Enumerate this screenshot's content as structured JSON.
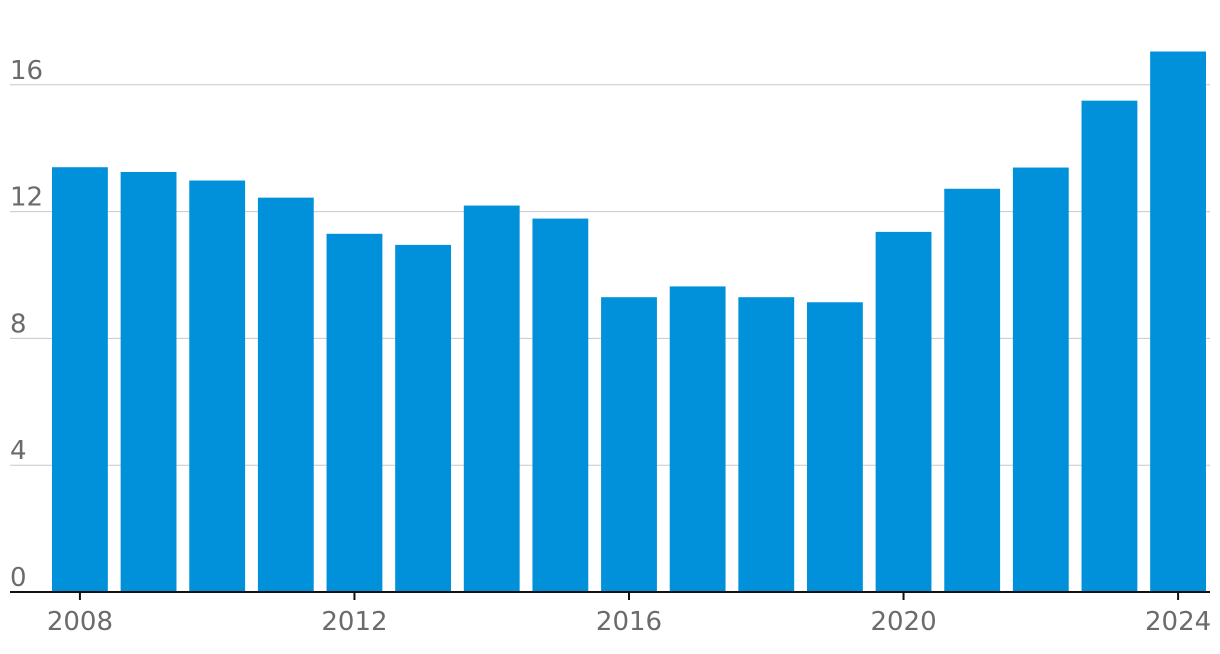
{
  "chart_data": {
    "type": "bar",
    "title": "",
    "xlabel": "",
    "ylabel": "",
    "categories": [
      "2008",
      "2009",
      "2010",
      "2011",
      "2012",
      "2013",
      "2014",
      "2015",
      "2016",
      "2017",
      "2018",
      "2019",
      "2020",
      "2021",
      "2022",
      "2023",
      "2024"
    ],
    "values": [
      13.4,
      13.25,
      12.98,
      12.44,
      11.3,
      10.95,
      12.19,
      11.78,
      9.3,
      9.64,
      9.3,
      9.14,
      11.36,
      12.72,
      13.39,
      15.5,
      17.05
    ],
    "x_tick_labels": [
      "2008",
      "2012",
      "2016",
      "2020",
      "2024"
    ],
    "y_ticks": [
      0,
      4,
      8,
      12,
      16
    ],
    "y_tick_labels": [
      "0",
      "4",
      "8",
      "12",
      "16"
    ],
    "ylim": [
      0,
      17.5
    ],
    "grid": true,
    "legend": "none",
    "colors": {
      "bar": "#0091da",
      "grid": "#c8c8c8",
      "baseline": "#111111",
      "tick_text": "#6b6b6b"
    }
  }
}
